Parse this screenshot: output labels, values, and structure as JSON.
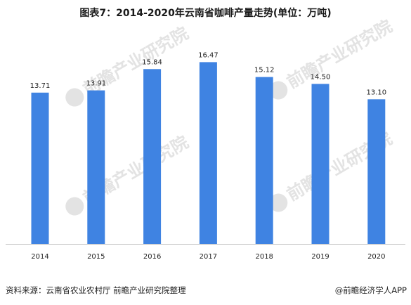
{
  "chart_data": {
    "type": "bar",
    "title": "图表7：2014-2020年云南省咖啡产量走势(单位：万吨)",
    "categories": [
      "2014",
      "2015",
      "2016",
      "2017",
      "2018",
      "2019",
      "2020"
    ],
    "values": [
      13.71,
      13.91,
      15.84,
      16.47,
      15.12,
      14.5,
      13.1
    ],
    "value_labels": [
      "13.71",
      "13.91",
      "15.84",
      "16.47",
      "15.12",
      "14.50",
      "13.10"
    ],
    "xlabel": "",
    "ylabel": "",
    "ylim": [
      0,
      17.5
    ],
    "grid": false,
    "legend": "none",
    "bar_color": "#3f83e2"
  },
  "watermark": {
    "text": "前瞻产业研究院"
  },
  "footer": {
    "source": "资料来源：云南省农业农村厅 前瞻产业研究院整理",
    "brand": "@前瞻经济学人APP"
  }
}
